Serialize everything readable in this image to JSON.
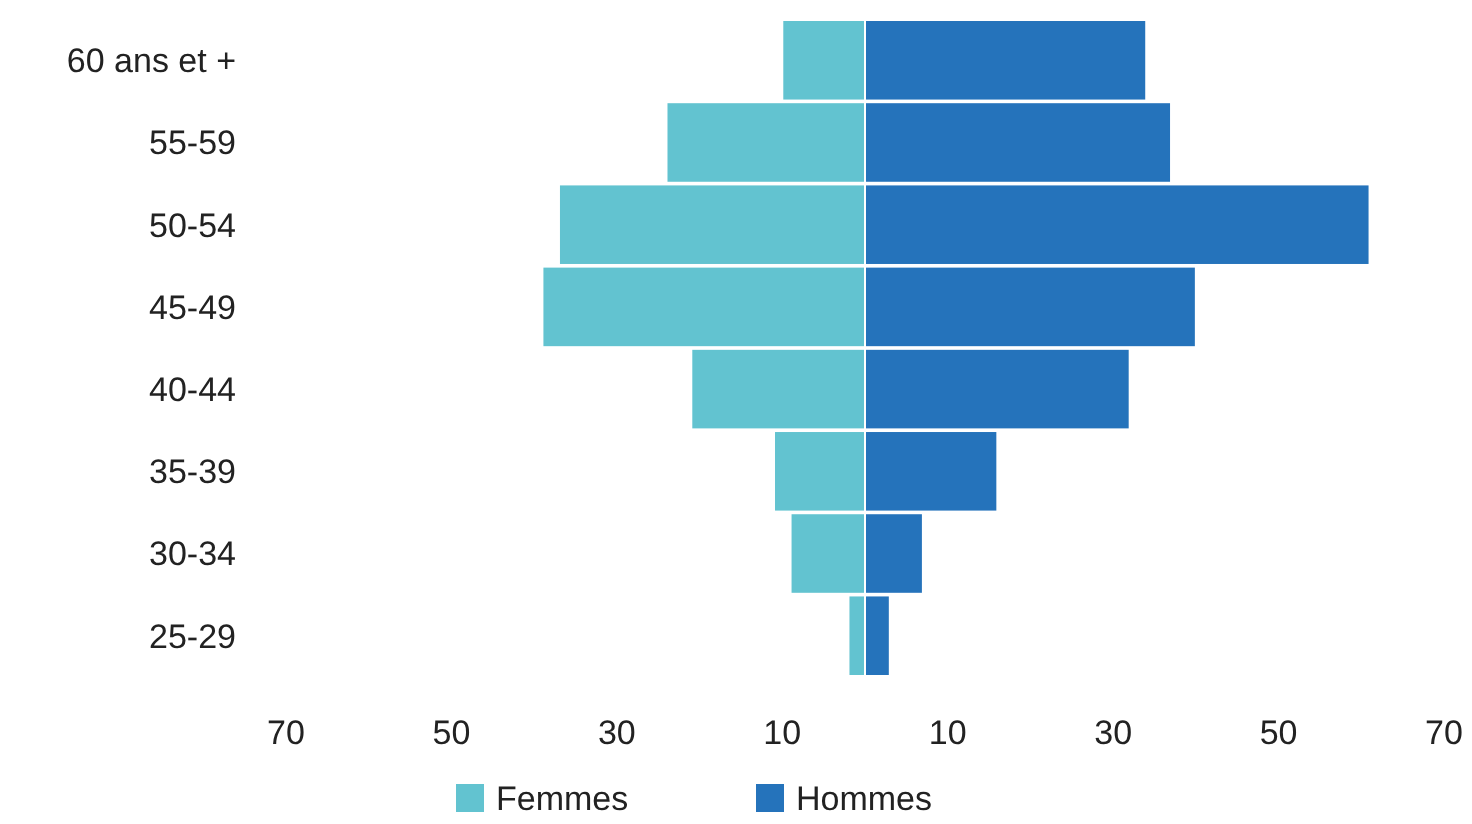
{
  "chart_data": {
    "type": "bar",
    "orientation": "horizontal",
    "stacked": true,
    "categories": [
      "60 ans et +",
      "55-59",
      "50-54",
      "45-49",
      "40-44",
      "35-39",
      "30-34",
      "25-29"
    ],
    "series": [
      {
        "name": "Femmes",
        "color": "#62c3d0",
        "values": [
          -10,
          -24,
          -37,
          -39,
          -21,
          -11,
          -9,
          -2
        ]
      },
      {
        "name": "Hommes",
        "color": "#2573bb",
        "values": [
          34,
          37,
          61,
          40,
          32,
          16,
          7,
          3
        ]
      }
    ],
    "xlim": [
      -70,
      70
    ],
    "xticks": [
      {
        "value": -70,
        "label": "70"
      },
      {
        "value": -50,
        "label": "50"
      },
      {
        "value": -30,
        "label": "30"
      },
      {
        "value": -10,
        "label": "10"
      },
      {
        "value": 10,
        "label": "10"
      },
      {
        "value": 30,
        "label": "30"
      },
      {
        "value": 50,
        "label": "50"
      },
      {
        "value": 70,
        "label": "70"
      }
    ],
    "legend": "bottom",
    "grid": false
  }
}
